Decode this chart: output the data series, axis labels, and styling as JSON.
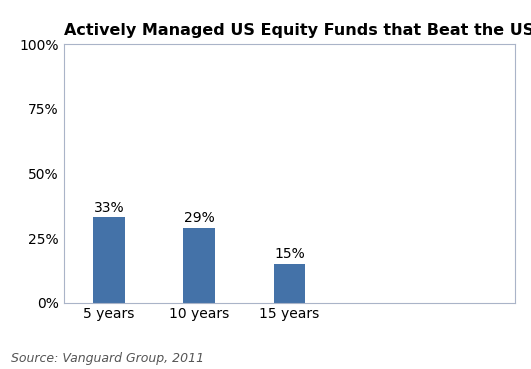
{
  "title": "Actively Managed US Equity Funds that Beat the US Equity Market",
  "categories": [
    "5 years",
    "10 years",
    "15 years"
  ],
  "values": [
    33,
    29,
    15
  ],
  "labels": [
    "33%",
    "29%",
    "15%"
  ],
  "bar_color": "#4472a8",
  "yticks": [
    0,
    25,
    50,
    75,
    100
  ],
  "ytick_labels": [
    "0%",
    "25%",
    "50%",
    "75%",
    "100%"
  ],
  "ylim": [
    0,
    100
  ],
  "source_text": "Source: Vanguard Group, 2011",
  "title_fontsize": 11.5,
  "label_fontsize": 10,
  "tick_fontsize": 10,
  "source_fontsize": 9,
  "background_color": "#ffffff",
  "bar_width": 0.35,
  "spine_color": "#aab4c8",
  "text_color": "#1a1a2e"
}
